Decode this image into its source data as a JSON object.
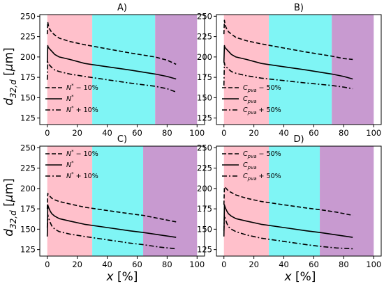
{
  "figure": {
    "ylabel": "d_{32,d} [μm]",
    "xlabel": "x [%]",
    "colors": {
      "zone1": "#ffc0cb",
      "zone2": "#7ff5f5",
      "zone3": "#c89ad0",
      "line": "#000000"
    },
    "zone_bounds_top": [
      0,
      30,
      72,
      100
    ],
    "zone_bounds_bottom": [
      0,
      30,
      64,
      100
    ]
  },
  "chart_data": [
    {
      "type": "line",
      "panel": "A",
      "title": "A)",
      "xlim": [
        -5,
        105
      ],
      "ylim": [
        117,
        252
      ],
      "xticks": [
        0,
        20,
        40,
        60,
        80,
        100
      ],
      "yticks": [
        125,
        150,
        175,
        200,
        225,
        250
      ],
      "legend_position": "lower-left",
      "series": [
        {
          "name": "N* − 10%",
          "legend_label": "N* − 10%",
          "style": "dashed",
          "x": [
            0,
            0.3,
            0.6,
            1,
            2,
            3,
            5,
            8,
            15,
            25,
            40,
            55,
            72,
            80,
            86
          ],
          "y": [
            228,
            243,
            240,
            236,
            233,
            230,
            227,
            223,
            219,
            215,
            210,
            205,
            200,
            196,
            191
          ]
        },
        {
          "name": "N*",
          "legend_label": "N*",
          "style": "solid",
          "x": [
            0,
            0.3,
            0.6,
            1,
            2,
            3,
            5,
            8,
            15,
            25,
            40,
            55,
            72,
            80,
            86
          ],
          "y": [
            193,
            214,
            212,
            211,
            209,
            207,
            203,
            200,
            197,
            192,
            188,
            184,
            179,
            176,
            173
          ]
        },
        {
          "name": "N* + 10%",
          "legend_label": "N* + 10%",
          "style": "dashdot",
          "x": [
            0,
            0.3,
            0.6,
            1,
            2,
            3,
            5,
            8,
            15,
            25,
            40,
            55,
            72,
            80,
            86
          ],
          "y": [
            172,
            194,
            192,
            191,
            189,
            187,
            184,
            182,
            179,
            176,
            172,
            168,
            164,
            161,
            157
          ]
        }
      ]
    },
    {
      "type": "line",
      "panel": "B",
      "title": "B)",
      "xlim": [
        -5,
        105
      ],
      "ylim": [
        117,
        252
      ],
      "xticks": [
        0,
        20,
        40,
        60,
        80,
        100
      ],
      "yticks": [
        125,
        150,
        175,
        200,
        225,
        250
      ],
      "legend_position": "lower-left",
      "series": [
        {
          "name": "Cpva − 50%",
          "legend_label": "Cpva − 50%",
          "style": "dashed",
          "x": [
            0,
            0.3,
            0.6,
            1,
            2,
            3,
            5,
            8,
            15,
            25,
            40,
            55,
            72,
            80,
            86
          ],
          "y": [
            228,
            245,
            242,
            238,
            234,
            231,
            228,
            224,
            220,
            216,
            211,
            206,
            201,
            198,
            197
          ]
        },
        {
          "name": "Cpva",
          "legend_label": "Cpva",
          "style": "solid",
          "x": [
            0,
            0.3,
            0.6,
            1,
            2,
            3,
            5,
            8,
            15,
            25,
            40,
            55,
            72,
            80,
            86
          ],
          "y": [
            193,
            214,
            212,
            211,
            209,
            207,
            203,
            200,
            197,
            192,
            188,
            184,
            179,
            176,
            173
          ]
        },
        {
          "name": "Cpva + 50%",
          "legend_label": "Cpva + 50%",
          "style": "dashdot",
          "x": [
            0,
            0.3,
            0.6,
            1,
            2,
            3,
            5,
            8,
            15,
            25,
            40,
            55,
            72,
            80,
            86
          ],
          "y": [
            165,
            193,
            190,
            189,
            187,
            185,
            182,
            180,
            177,
            174,
            171,
            168,
            165,
            163,
            161
          ]
        }
      ]
    },
    {
      "type": "line",
      "panel": "C",
      "title": "C)",
      "xlim": [
        -5,
        105
      ],
      "ylim": [
        117,
        252
      ],
      "xticks": [
        0,
        20,
        40,
        60,
        80,
        100
      ],
      "yticks": [
        125,
        150,
        175,
        200,
        225,
        250
      ],
      "legend_position": "upper-left",
      "series": [
        {
          "name": "N* − 10%",
          "legend_label": "N* − 10%",
          "style": "dashed",
          "x": [
            0,
            0.3,
            0.6,
            1,
            2,
            3,
            5,
            8,
            15,
            25,
            40,
            55,
            64,
            75,
            86
          ],
          "y": [
            175,
            194,
            193,
            192,
            190,
            188,
            186,
            184,
            181,
            177,
            173,
            169,
            167,
            163,
            159
          ]
        },
        {
          "name": "N*",
          "legend_label": "N*",
          "style": "solid",
          "x": [
            0,
            0.3,
            0.6,
            1,
            2,
            3,
            5,
            8,
            15,
            25,
            40,
            55,
            64,
            75,
            86
          ],
          "y": [
            141,
            180,
            178,
            176,
            172,
            169,
            166,
            163,
            160,
            156,
            152,
            148,
            146,
            143,
            140
          ]
        },
        {
          "name": "N* + 10%",
          "legend_label": "N* + 10%",
          "style": "dashdot",
          "x": [
            0,
            0.3,
            0.6,
            1,
            2,
            3,
            5,
            8,
            15,
            25,
            40,
            55,
            64,
            75,
            86
          ],
          "y": [
            152,
            168,
            166,
            163,
            158,
            154,
            150,
            147,
            144,
            141,
            137,
            133,
            131,
            128,
            126
          ]
        }
      ]
    },
    {
      "type": "line",
      "panel": "D",
      "title": "D)",
      "xlim": [
        -5,
        105
      ],
      "ylim": [
        117,
        252
      ],
      "xticks": [
        0,
        20,
        40,
        60,
        80,
        100
      ],
      "yticks": [
        125,
        150,
        175,
        200,
        225,
        250
      ],
      "legend_position": "upper-left",
      "series": [
        {
          "name": "Cpva − 50%",
          "legend_label": "Cpva − 50%",
          "style": "dashed",
          "x": [
            0,
            0.3,
            0.6,
            1,
            2,
            3,
            5,
            8,
            15,
            25,
            40,
            55,
            64,
            75,
            86
          ],
          "y": [
            180,
            201,
            202,
            201,
            199,
            197,
            195,
            192,
            188,
            184,
            180,
            176,
            174,
            171,
            167
          ]
        },
        {
          "name": "Cpva",
          "legend_label": "Cpva",
          "style": "solid",
          "x": [
            0,
            0.3,
            0.6,
            1,
            2,
            3,
            5,
            8,
            15,
            25,
            40,
            55,
            64,
            75,
            86
          ],
          "y": [
            141,
            180,
            178,
            176,
            172,
            169,
            166,
            163,
            160,
            156,
            152,
            148,
            146,
            143,
            140
          ]
        },
        {
          "name": "Cpva + 50%",
          "legend_label": "Cpva + 50%",
          "style": "dashdot",
          "x": [
            0,
            0.3,
            0.6,
            1,
            2,
            3,
            5,
            8,
            15,
            25,
            40,
            55,
            64,
            75,
            86
          ],
          "y": [
            148,
            167,
            165,
            162,
            157,
            153,
            150,
            147,
            143,
            139,
            135,
            131,
            129,
            127,
            126
          ]
        }
      ]
    }
  ]
}
